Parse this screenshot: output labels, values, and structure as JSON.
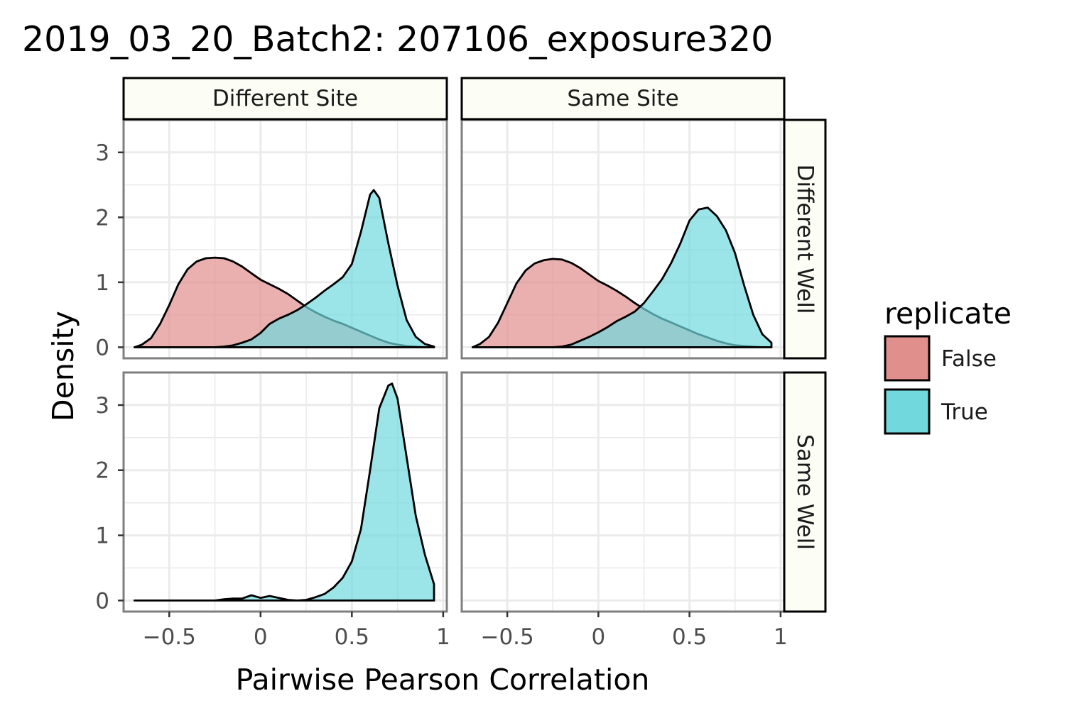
{
  "chart_data": {
    "type": "area",
    "subtype": "faceted-density",
    "title": "2019_03_20_Batch2: 207106_exposure320",
    "xlabel": "Pairwise Pearson Correlation",
    "ylabel": "Density",
    "xlim": [
      -0.75,
      1.02
    ],
    "ylim": [
      -0.17,
      3.5
    ],
    "x_ticks": [
      -0.5,
      0,
      0.5,
      1
    ],
    "x_tick_labels": [
      "−0.5",
      "0",
      "0.5",
      "1"
    ],
    "y_ticks": [
      0,
      1,
      2,
      3
    ],
    "y_tick_labels": [
      "0",
      "1",
      "2",
      "3"
    ],
    "grid": true,
    "col_facets": [
      "Different Site",
      "Same Site"
    ],
    "row_facets": [
      "Different Well",
      "Same Well"
    ],
    "legend": {
      "title": "replicate",
      "position": "right",
      "entries": [
        {
          "label": "False",
          "color": "#F8766D"
        },
        {
          "label": "True",
          "color": "#00BFC4"
        }
      ]
    },
    "colors": {
      "False": "#e08f8d",
      "True": "#71d8de",
      "panel_border": "#7f7f7f",
      "grid_major": "#ebebeb",
      "strip_fill": "#fcfdf5"
    },
    "panels": [
      {
        "row": "Different Well",
        "col": "Different Site",
        "series": [
          {
            "name": "False",
            "x": [
              -0.69,
              -0.65,
              -0.6,
              -0.55,
              -0.5,
              -0.45,
              -0.4,
              -0.35,
              -0.3,
              -0.25,
              -0.2,
              -0.15,
              -0.1,
              -0.05,
              0,
              0.05,
              0.1,
              0.15,
              0.2,
              0.25,
              0.3,
              0.35,
              0.4,
              0.45,
              0.5,
              0.55,
              0.6,
              0.65,
              0.7,
              0.75,
              0.8,
              0.85,
              0.9,
              0.95
            ],
            "y": [
              0.0,
              0.04,
              0.14,
              0.36,
              0.65,
              0.97,
              1.2,
              1.32,
              1.37,
              1.38,
              1.37,
              1.32,
              1.24,
              1.14,
              1.04,
              0.97,
              0.9,
              0.82,
              0.72,
              0.62,
              0.54,
              0.47,
              0.41,
              0.36,
              0.3,
              0.24,
              0.18,
              0.12,
              0.07,
              0.04,
              0.02,
              0.01,
              0.0,
              0.0
            ]
          },
          {
            "name": "True",
            "x": [
              -0.69,
              -0.6,
              -0.5,
              -0.4,
              -0.3,
              -0.25,
              -0.2,
              -0.15,
              -0.1,
              -0.05,
              0,
              0.05,
              0.1,
              0.15,
              0.2,
              0.25,
              0.3,
              0.35,
              0.4,
              0.45,
              0.5,
              0.55,
              0.6,
              0.62,
              0.65,
              0.7,
              0.75,
              0.8,
              0.85,
              0.9,
              0.95
            ],
            "y": [
              0.0,
              0.0,
              0.0,
              0.0,
              0.0,
              0.0,
              0.01,
              0.03,
              0.07,
              0.12,
              0.22,
              0.36,
              0.44,
              0.5,
              0.57,
              0.66,
              0.76,
              0.87,
              0.97,
              1.08,
              1.28,
              1.78,
              2.35,
              2.42,
              2.3,
              1.6,
              0.95,
              0.42,
              0.16,
              0.05,
              0.01
            ]
          }
        ]
      },
      {
        "row": "Different Well",
        "col": "Same Site",
        "series": [
          {
            "name": "False",
            "x": [
              -0.69,
              -0.65,
              -0.6,
              -0.55,
              -0.5,
              -0.45,
              -0.4,
              -0.35,
              -0.3,
              -0.25,
              -0.2,
              -0.15,
              -0.1,
              -0.05,
              0,
              0.05,
              0.1,
              0.15,
              0.2,
              0.25,
              0.3,
              0.35,
              0.4,
              0.45,
              0.5,
              0.55,
              0.6,
              0.65,
              0.7,
              0.75,
              0.8,
              0.85,
              0.9,
              0.95
            ],
            "y": [
              0.0,
              0.05,
              0.16,
              0.38,
              0.68,
              0.98,
              1.18,
              1.29,
              1.34,
              1.36,
              1.35,
              1.3,
              1.22,
              1.12,
              1.02,
              0.95,
              0.87,
              0.78,
              0.68,
              0.59,
              0.51,
              0.44,
              0.38,
              0.32,
              0.26,
              0.2,
              0.15,
              0.1,
              0.06,
              0.03,
              0.02,
              0.01,
              0.0,
              0.0
            ]
          },
          {
            "name": "True",
            "x": [
              -0.69,
              -0.6,
              -0.5,
              -0.4,
              -0.3,
              -0.25,
              -0.2,
              -0.15,
              -0.1,
              -0.05,
              0,
              0.05,
              0.1,
              0.15,
              0.2,
              0.25,
              0.3,
              0.35,
              0.4,
              0.45,
              0.5,
              0.55,
              0.6,
              0.65,
              0.7,
              0.75,
              0.8,
              0.85,
              0.9,
              0.95
            ],
            "y": [
              0.0,
              0.0,
              0.0,
              0.0,
              0.0,
              0.0,
              0.01,
              0.04,
              0.1,
              0.16,
              0.23,
              0.31,
              0.4,
              0.47,
              0.55,
              0.68,
              0.86,
              1.05,
              1.3,
              1.6,
              1.95,
              2.12,
              2.15,
              2.02,
              1.8,
              1.45,
              0.95,
              0.5,
              0.2,
              0.07
            ]
          }
        ]
      },
      {
        "row": "Same Well",
        "col": "Different Site",
        "series": [
          {
            "name": "True",
            "x": [
              -0.69,
              -0.5,
              -0.4,
              -0.3,
              -0.25,
              -0.2,
              -0.15,
              -0.1,
              -0.05,
              0,
              0.05,
              0.1,
              0.15,
              0.2,
              0.25,
              0.3,
              0.35,
              0.4,
              0.45,
              0.5,
              0.55,
              0.6,
              0.65,
              0.7,
              0.72,
              0.75,
              0.8,
              0.85,
              0.9,
              0.95
            ],
            "y": [
              0.0,
              0.0,
              0.0,
              0.0,
              0.0,
              0.02,
              0.03,
              0.03,
              0.08,
              0.04,
              0.07,
              0.04,
              0.01,
              0.0,
              0.01,
              0.05,
              0.1,
              0.2,
              0.35,
              0.6,
              1.1,
              2.0,
              2.95,
              3.3,
              3.33,
              3.1,
              2.2,
              1.3,
              0.7,
              0.25
            ]
          }
        ]
      },
      {
        "row": "Same Well",
        "col": "Same Site",
        "series": []
      }
    ]
  }
}
